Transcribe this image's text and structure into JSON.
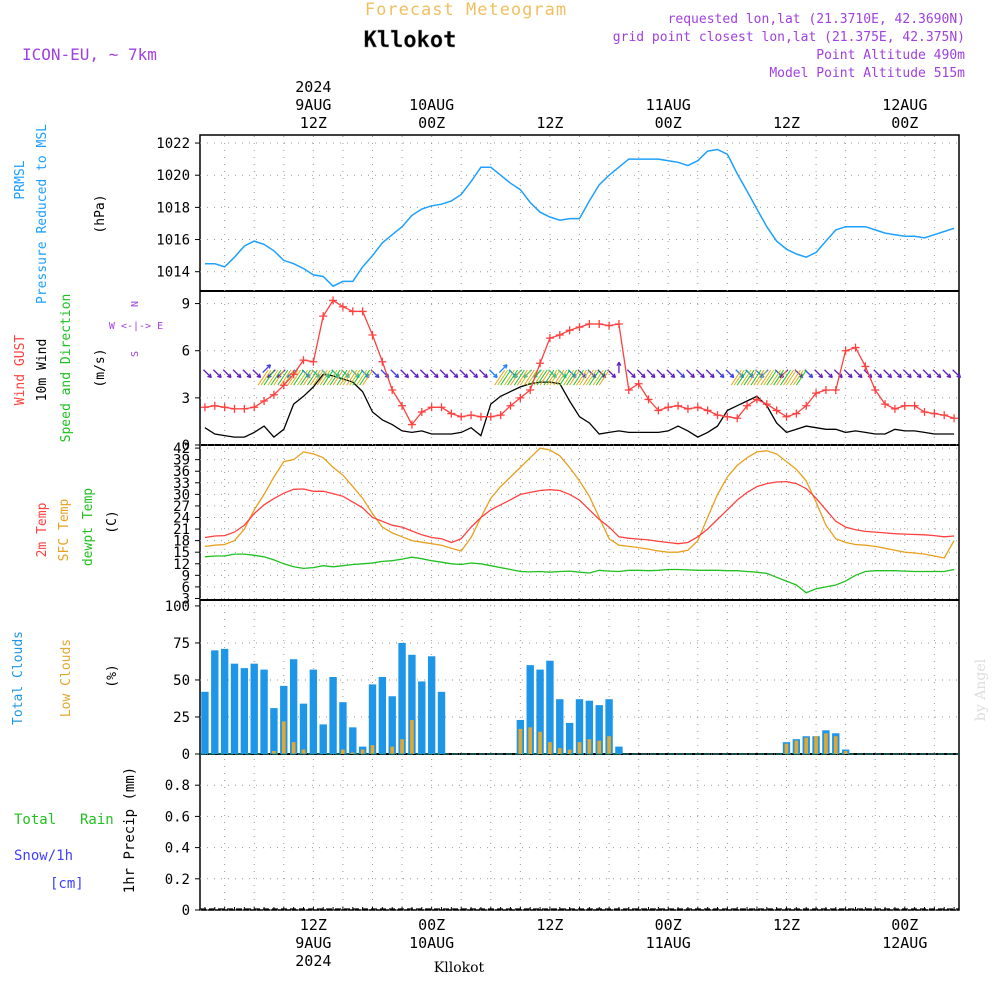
{
  "header": {
    "title": "Forecast Meteogram",
    "location": "Kllokot",
    "model": "ICON-EU, ~ 7km",
    "requested": "requested lon,lat (21.3710E, 42.3690N)",
    "grid_point": "grid point closest lon,lat (21.375E, 42.375N)",
    "point_altitude": "Point Altitude 490m",
    "model_altitude": "Model Point Altitude 515m",
    "footer_location": "Kllokot",
    "credit": "by Angel"
  },
  "time_axis": {
    "top_labels": [
      {
        "hour": 12,
        "lines": [
          "2024",
          "9AUG",
          "12Z"
        ]
      },
      {
        "hour": 24,
        "lines": [
          "10AUG",
          "00Z"
        ]
      },
      {
        "hour": 36,
        "lines": [
          "12Z"
        ]
      },
      {
        "hour": 48,
        "lines": [
          "11AUG",
          "00Z"
        ]
      },
      {
        "hour": 60,
        "lines": [
          "12Z"
        ]
      },
      {
        "hour": 72,
        "lines": [
          "12AUG",
          "00Z"
        ]
      }
    ],
    "bottom_labels": [
      {
        "hour": 12,
        "lines": [
          "12Z",
          "9AUG",
          "2024"
        ]
      },
      {
        "hour": 24,
        "lines": [
          "00Z",
          "10AUG"
        ]
      },
      {
        "hour": 36,
        "lines": [
          "12Z"
        ]
      },
      {
        "hour": 48,
        "lines": [
          "00Z",
          "11AUG"
        ]
      },
      {
        "hour": 60,
        "lines": [
          "12Z"
        ]
      },
      {
        "hour": 72,
        "lines": [
          "00Z",
          "12AUG"
        ]
      }
    ],
    "hour_range": [
      1,
      77
    ],
    "step_hours": 1
  },
  "panels": {
    "pressure": {
      "label1": "PRMSL",
      "label2": "Pressure Reduced to MSL",
      "unit": "(hPa)",
      "ticks": [
        "1014",
        "1016",
        "1018",
        "1020",
        "1022"
      ]
    },
    "wind": {
      "label1": "Wind GUST",
      "label2": "10m Wind",
      "label3": "Speed and Direction",
      "unit": "(m/s)",
      "ticks": [
        "0",
        "3",
        "6",
        "9"
      ],
      "compass_n": "N",
      "compass_we": "W <-|-> E",
      "compass_s": "S"
    },
    "temperature": {
      "label1": "2m Temp",
      "label2": "SFC Temp",
      "label3": "dewpt Temp",
      "unit": "(C)",
      "ticks": [
        "3",
        "6",
        "9",
        "12",
        "15",
        "18",
        "21",
        "24",
        "27",
        "30",
        "33",
        "36",
        "39",
        "42"
      ]
    },
    "clouds": {
      "label1": "Total Clouds",
      "label2": "Low Clouds",
      "unit": "(%)",
      "ticks": [
        "0",
        "25",
        "50",
        "75",
        "100"
      ]
    },
    "precip": {
      "label1": "Total",
      "label2": "Rain",
      "label3": "Snow/1h",
      "label4": "[cm]",
      "unit": "1hr Precip (mm)",
      "ticks": [
        "0",
        "0.2",
        "0.4",
        "0.6",
        "0.8"
      ]
    }
  },
  "colors": {
    "pressure": "#1ea0ff",
    "gust": "#ff4040",
    "wind": "#000000",
    "temp2m": "#ff4040",
    "sfc": "#e8a020",
    "dew": "#20c020",
    "total_clouds": "#1e96e8",
    "low_clouds": "#e0a830",
    "title": "#f0c060",
    "meta": "#a040e0",
    "snow": "#4040ff",
    "rain": "#20c020"
  },
  "chart_data": {
    "type": "line",
    "x_unit": "hours from 2024-08-09 00Z",
    "x": [
      1,
      2,
      3,
      4,
      5,
      6,
      7,
      8,
      9,
      10,
      11,
      12,
      13,
      14,
      15,
      16,
      17,
      18,
      19,
      20,
      21,
      22,
      23,
      24,
      25,
      26,
      27,
      28,
      29,
      30,
      31,
      32,
      33,
      34,
      35,
      36,
      37,
      38,
      39,
      40,
      41,
      42,
      43,
      44,
      45,
      46,
      47,
      48,
      49,
      50,
      51,
      52,
      53,
      54,
      55,
      56,
      57,
      58,
      59,
      60,
      61,
      62,
      63,
      64,
      65,
      66,
      67,
      68,
      69,
      70,
      71,
      72,
      73,
      74,
      75,
      76,
      77
    ],
    "series": [
      {
        "name": "PRMSL (hPa)",
        "values": [
          1014.5,
          1014.5,
          1014.3,
          1014.9,
          1015.6,
          1015.9,
          1015.7,
          1015.3,
          1014.7,
          1014.5,
          1014.2,
          1013.8,
          1013.7,
          1013.1,
          1013.4,
          1013.4,
          1014.3,
          1015.0,
          1015.8,
          1016.3,
          1016.8,
          1017.5,
          1017.9,
          1018.1,
          1018.2,
          1018.4,
          1018.8,
          1019.6,
          1020.5,
          1020.5,
          1020.0,
          1019.5,
          1019.1,
          1018.3,
          1017.7,
          1017.4,
          1017.2,
          1017.3,
          1017.3,
          1018.4,
          1019.4,
          1020.0,
          1020.5,
          1021.0,
          1021.0,
          1021.0,
          1021.0,
          1020.9,
          1020.8,
          1020.6,
          1020.9,
          1021.5,
          1021.6,
          1021.3,
          1020.1,
          1019.0,
          1017.9,
          1016.8,
          1015.9,
          1015.4,
          1015.1,
          1014.9,
          1015.2,
          1015.9,
          1016.6,
          1016.8,
          1016.8,
          1016.8,
          1016.6,
          1016.4,
          1016.3,
          1016.2,
          1016.2,
          1016.1,
          1016.3,
          1016.5,
          1016.7
        ]
      },
      {
        "name": "Wind GUST (m/s)",
        "values": [
          2.4,
          2.5,
          2.4,
          2.3,
          2.3,
          2.4,
          2.8,
          3.2,
          3.8,
          4.5,
          5.4,
          5.3,
          8.2,
          9.2,
          8.8,
          8.5,
          8.5,
          7.0,
          5.3,
          3.5,
          2.5,
          1.3,
          2.1,
          2.4,
          2.4,
          2.0,
          1.8,
          1.9,
          1.8,
          1.8,
          1.9,
          2.5,
          3.0,
          3.5,
          5.2,
          6.8,
          7.0,
          7.3,
          7.5,
          7.7,
          7.7,
          7.6,
          7.7,
          3.5,
          3.9,
          2.9,
          2.2,
          2.4,
          2.5,
          2.3,
          2.4,
          2.2,
          1.9,
          1.8,
          1.7,
          2.5,
          2.9,
          2.6,
          2.2,
          1.8,
          2.0,
          2.5,
          3.3,
          3.5,
          3.5,
          6.0,
          6.2,
          5.0,
          3.5,
          2.6,
          2.3,
          2.5,
          2.5,
          2.1,
          2.0,
          1.9,
          1.7
        ]
      },
      {
        "name": "10m Wind (m/s)",
        "values": [
          1.1,
          0.7,
          0.6,
          0.5,
          0.5,
          0.8,
          1.2,
          0.5,
          1.0,
          2.6,
          3.1,
          3.7,
          4.5,
          4.4,
          4.2,
          4.0,
          3.4,
          2.1,
          1.6,
          1.3,
          0.9,
          0.8,
          0.9,
          0.7,
          0.7,
          0.7,
          0.8,
          1.1,
          0.6,
          2.6,
          3.1,
          3.4,
          3.7,
          3.9,
          4.0,
          4.0,
          3.9,
          2.8,
          1.8,
          1.4,
          0.7,
          0.8,
          0.9,
          0.8,
          0.8,
          0.8,
          0.8,
          0.9,
          1.2,
          0.9,
          0.5,
          0.8,
          1.2,
          2.2,
          2.5,
          2.8,
          3.1,
          2.5,
          1.4,
          0.8,
          1.0,
          1.2,
          1.1,
          1.0,
          1.0,
          0.8,
          0.9,
          0.8,
          0.7,
          0.7,
          1.0,
          0.9,
          0.9,
          0.8,
          0.7,
          0.7,
          0.7
        ]
      },
      {
        "name": "2m Temp (C)",
        "values": [
          18.8,
          19.2,
          19.3,
          20.2,
          22.0,
          25.0,
          27.3,
          28.9,
          30.3,
          31.3,
          31.4,
          30.8,
          30.8,
          30.2,
          29.5,
          28.0,
          26.5,
          24.0,
          23.0,
          22.0,
          21.5,
          20.5,
          19.5,
          18.8,
          18.5,
          17.5,
          18.5,
          21.5,
          24.0,
          26.0,
          27.3,
          28.6,
          30.0,
          30.5,
          31.0,
          31.2,
          31.0,
          30.0,
          28.5,
          26.0,
          23.5,
          21.5,
          19.0,
          18.6,
          18.4,
          18.2,
          17.8,
          17.5,
          17.2,
          17.5,
          19.0,
          21.0,
          23.5,
          26.0,
          28.5,
          30.5,
          32.0,
          32.8,
          33.2,
          33.3,
          32.8,
          31.5,
          29.0,
          26.0,
          23.0,
          21.5,
          20.8,
          20.4,
          20.2,
          20.0,
          19.8,
          19.7,
          19.6,
          19.5,
          19.3,
          19.0,
          19.2
        ]
      },
      {
        "name": "SFC Temp (C)",
        "values": [
          16.5,
          16.8,
          17.0,
          18.0,
          21.0,
          26.0,
          30.0,
          34.5,
          38.5,
          39.0,
          41.0,
          40.5,
          39.5,
          37.0,
          35.0,
          32.0,
          29.0,
          25.0,
          21.5,
          20.0,
          19.0,
          18.0,
          17.6,
          17.2,
          16.8,
          16.0,
          15.3,
          18.8,
          24.0,
          29.0,
          32.0,
          34.5,
          37.0,
          39.5,
          42.0,
          41.5,
          40.0,
          37.0,
          33.5,
          29.5,
          24.0,
          18.5,
          16.8,
          16.5,
          16.2,
          15.8,
          15.3,
          15.0,
          15.0,
          15.5,
          18.0,
          24.0,
          30.0,
          34.5,
          37.5,
          39.5,
          41.0,
          41.3,
          40.5,
          38.5,
          36.5,
          33.5,
          28.0,
          22.0,
          18.5,
          17.5,
          17.0,
          16.8,
          16.5,
          16.0,
          15.5,
          15.0,
          14.8,
          14.5,
          14.0,
          13.5,
          18.0
        ]
      },
      {
        "name": "dewpt Temp (C)",
        "values": [
          13.8,
          14.0,
          14.0,
          14.5,
          14.5,
          14.2,
          13.8,
          13.0,
          12.0,
          11.2,
          10.8,
          11.0,
          11.5,
          11.2,
          11.5,
          11.8,
          12.0,
          12.2,
          12.6,
          12.8,
          13.2,
          13.7,
          13.3,
          12.8,
          12.4,
          12.0,
          11.8,
          12.2,
          12.0,
          11.5,
          11.0,
          10.5,
          10.0,
          9.9,
          10.0,
          9.8,
          10.0,
          10.1,
          9.8,
          9.6,
          10.3,
          10.1,
          10.0,
          10.3,
          10.3,
          10.2,
          10.3,
          10.5,
          10.5,
          10.4,
          10.3,
          10.3,
          10.3,
          10.2,
          10.2,
          10.0,
          9.8,
          9.5,
          8.5,
          7.5,
          6.5,
          4.5,
          5.5,
          6.0,
          6.5,
          7.5,
          9.0,
          10.0,
          10.2,
          10.2,
          10.2,
          10.1,
          10.0,
          10.0,
          10.0,
          10.0,
          10.5
        ]
      },
      {
        "name": "Total Clouds (%)",
        "values": [
          42,
          70,
          71,
          61,
          58,
          61,
          57,
          31,
          46,
          64,
          34,
          57,
          20,
          52,
          35,
          18,
          5,
          47,
          52,
          39,
          75,
          67,
          49,
          66,
          42,
          0,
          0,
          0,
          0,
          0,
          0,
          0,
          23,
          60,
          57,
          63,
          37,
          21,
          37,
          36,
          33,
          37,
          5,
          0,
          0,
          0,
          0,
          0,
          0,
          0,
          0,
          0,
          0,
          0,
          0,
          0,
          0,
          0,
          0,
          8,
          10,
          12,
          12,
          16,
          14,
          3,
          0,
          0,
          0,
          0,
          0,
          0,
          0,
          0,
          0,
          0,
          0
        ]
      },
      {
        "name": "Low Clouds (%)",
        "values": [
          0,
          0,
          0,
          0,
          0,
          0,
          0,
          2,
          22,
          8,
          3,
          0,
          0,
          0,
          3,
          1,
          3,
          6,
          0,
          5,
          10,
          23,
          0,
          0,
          0,
          0,
          0,
          0,
          0,
          0,
          0,
          0,
          17,
          18,
          15,
          8,
          4,
          3,
          8,
          10,
          9,
          12,
          0,
          0,
          0,
          0,
          0,
          0,
          0,
          0,
          0,
          0,
          0,
          0,
          0,
          0,
          0,
          0,
          0,
          7,
          9,
          11,
          12,
          14,
          12,
          2,
          0,
          0,
          0,
          0,
          0,
          0,
          0,
          0,
          0,
          0,
          0
        ]
      },
      {
        "name": "1hr Precip (mm)",
        "values": [
          0,
          0,
          0,
          0,
          0,
          0,
          0,
          0,
          0,
          0,
          0,
          0,
          0,
          0,
          0,
          0,
          0,
          0,
          0,
          0,
          0,
          0,
          0,
          0,
          0,
          0,
          0,
          0,
          0,
          0,
          0,
          0,
          0,
          0,
          0,
          0,
          0,
          0,
          0,
          0,
          0,
          0,
          0,
          0,
          0,
          0,
          0,
          0,
          0,
          0,
          0,
          0,
          0,
          0,
          0,
          0,
          0,
          0,
          0,
          0,
          0,
          0,
          0,
          0,
          0,
          0,
          0,
          0,
          0,
          0,
          0,
          0,
          0,
          0,
          0,
          0,
          0
        ]
      }
    ],
    "wind_barbs": [
      {
        "hour": 7,
        "dir": "NE"
      },
      {
        "hour": 8,
        "dir": "SW"
      },
      {
        "hour": 9,
        "dir": "SW"
      },
      {
        "hour": 10,
        "dir": "SW"
      },
      {
        "hour": 31,
        "dir": "NE"
      },
      {
        "hour": 33,
        "dir": "SW"
      },
      {
        "hour": 34,
        "dir": "SW"
      },
      {
        "hour": 35,
        "dir": "SW"
      },
      {
        "hour": 43,
        "dir": "N"
      },
      {
        "hour": 53,
        "dir": "SE"
      },
      {
        "hour": 58,
        "dir": "SW"
      },
      {
        "hour": 60,
        "dir": "SW"
      }
    ],
    "ylims": {
      "pressure": [
        1012.8,
        1022.5
      ],
      "wind": [
        0,
        9.8
      ],
      "temperature": [
        2.6,
        42.8
      ],
      "clouds": [
        0,
        104
      ],
      "precip": [
        0,
        1.0
      ]
    }
  }
}
